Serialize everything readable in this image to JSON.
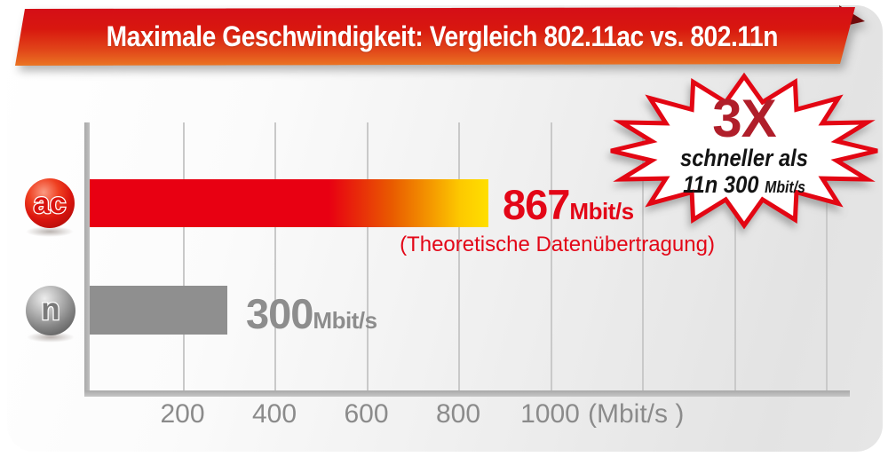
{
  "banner": {
    "title": "Maximale Geschwindigkeit: Vergleich 802.11ac vs. 802.11n"
  },
  "chart_data": {
    "type": "bar",
    "orientation": "horizontal",
    "title": "Maximale Geschwindigkeit: Vergleich 802.11ac vs. 802.11n",
    "categories": [
      "ac",
      "n"
    ],
    "values": [
      867,
      300
    ],
    "unit": "Mbit/s",
    "series_labels": [
      {
        "value": "867",
        "unit": "Mbit/s",
        "note": "(Theoretische Datenübertragung)"
      },
      {
        "value": "300",
        "unit": "Mbit/s"
      }
    ],
    "x_ticks": [
      {
        "label": "200",
        "value": 200
      },
      {
        "label": "400",
        "value": 400
      },
      {
        "label": "600",
        "value": 600
      },
      {
        "label": "800",
        "value": 800
      },
      {
        "label": "1000",
        "value": 1000
      }
    ],
    "x_axis_unit": "(Mbit/s )",
    "x_gridlines": [
      200,
      400,
      600,
      800,
      1000,
      1200,
      1400,
      1600
    ],
    "xlim": [
      0,
      1660
    ],
    "grid": true,
    "legend": false
  },
  "callout": {
    "multiplier": "3X",
    "line2": "schneller als",
    "line3": "11n 300",
    "line3_unit": "Mbit/s"
  },
  "colors": {
    "accent_red": "#e30613",
    "bar_red": "#e80012",
    "bar_yellow": "#ffdf00",
    "bar_gray": "#8f8f8f",
    "value_label_red": "#e30617",
    "value_label_gray": "#8d8d8d",
    "tick_gray": "#8b8b8b",
    "callout_text_red": "#b01e2a",
    "banner_gradient_top": "#d40d18",
    "banner_gradient_bottom": "#ec7a24"
  }
}
